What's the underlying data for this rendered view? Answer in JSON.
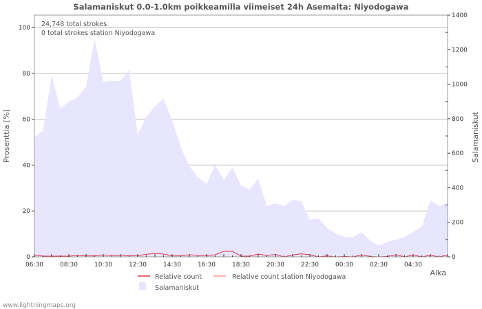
{
  "footer": "www.lightningmaps.org",
  "chart_data": {
    "type": "area",
    "title": "Salamaniskut 0.0-1.0km poikkeamilla viimeiset 24h Asemalta: Niyodogawa",
    "annotations": [
      "24,748 total strokes",
      "0 total strokes station Niyodogawa"
    ],
    "xlabel": "Aika",
    "ylabel_left": "Prosenttia   [%]",
    "ylabel_right": "Salamaniskut",
    "x_tick_labels": [
      "06:30",
      "08:30",
      "10:30",
      "12:30",
      "14:30",
      "16:30",
      "18:30",
      "20:30",
      "22:30",
      "00:30",
      "02:30",
      "04:30"
    ],
    "y_left_ticks": [
      0,
      20,
      40,
      60,
      80,
      100
    ],
    "y_right_ticks": [
      0,
      200,
      400,
      600,
      800,
      1000,
      1200,
      1400
    ],
    "ylim_right": [
      0,
      1400
    ],
    "ylim_left": [
      0,
      105.4
    ],
    "x_hours": [
      0,
      0.5,
      1,
      1.5,
      2,
      2.5,
      3,
      3.5,
      4,
      4.5,
      5,
      5.5,
      6,
      6.5,
      7,
      7.5,
      8,
      8.5,
      9,
      9.5,
      10,
      10.5,
      11,
      11.5,
      12,
      12.5,
      13,
      13.5,
      14,
      14.5,
      15,
      15.5,
      16,
      16.5,
      17,
      17.5,
      18,
      18.5,
      19,
      19.5,
      20,
      20.5,
      21,
      21.5,
      22,
      22.5,
      23,
      23.5,
      24
    ],
    "grid": true,
    "legend": {
      "placement": "bottom",
      "entries": [
        "Relative count",
        "Relative count station Niyodogawa",
        "Salamaniskut"
      ]
    },
    "series": [
      {
        "name": "Salamaniskut",
        "axis": "right",
        "color": "#e8e6ff",
        "values": [
          692,
          732,
          1050,
          859,
          899,
          923,
          986,
          1261,
          1014,
          1018,
          1018,
          1082,
          708,
          811,
          871,
          915,
          791,
          636,
          525,
          461,
          422,
          533,
          445,
          517,
          414,
          390,
          453,
          294,
          310,
          294,
          330,
          322,
          215,
          223,
          167,
          135,
          115,
          115,
          143,
          95,
          64,
          88,
          99,
          115,
          143,
          175,
          326,
          294,
          310
        ]
      },
      {
        "name": "Relative count",
        "axis": "left",
        "color": "#dd3344",
        "values": [
          0.8,
          0.3,
          0.3,
          0.3,
          0.3,
          0.6,
          0.4,
          0.4,
          0.8,
          0.6,
          0.6,
          0.5,
          0.5,
          1.1,
          1.5,
          1.2,
          0.4,
          0.4,
          0.9,
          0.6,
          0.5,
          0.9,
          2.4,
          2.4,
          0.3,
          0.3,
          1.2,
          0.6,
          1.0,
          0,
          0.8,
          1.3,
          0.9,
          0,
          0.4,
          0,
          0.2,
          0,
          0.8,
          0.2,
          0,
          0.2,
          0.9,
          0,
          0.8,
          0,
          0.7,
          0,
          0.8
        ]
      },
      {
        "name": "Relative count station Niyodogawa",
        "axis": "left",
        "color": "#ff9999",
        "values": [
          0,
          0,
          0,
          0,
          0,
          0,
          0,
          0,
          0,
          0,
          0,
          0,
          0,
          0,
          0,
          0,
          0,
          0,
          0,
          0,
          0,
          0,
          0,
          0,
          0,
          0,
          0,
          0,
          0,
          0,
          0,
          0,
          0,
          0,
          0,
          0,
          0,
          0,
          0,
          0,
          0,
          0,
          0,
          0,
          0,
          0,
          0,
          0,
          0
        ]
      }
    ]
  }
}
